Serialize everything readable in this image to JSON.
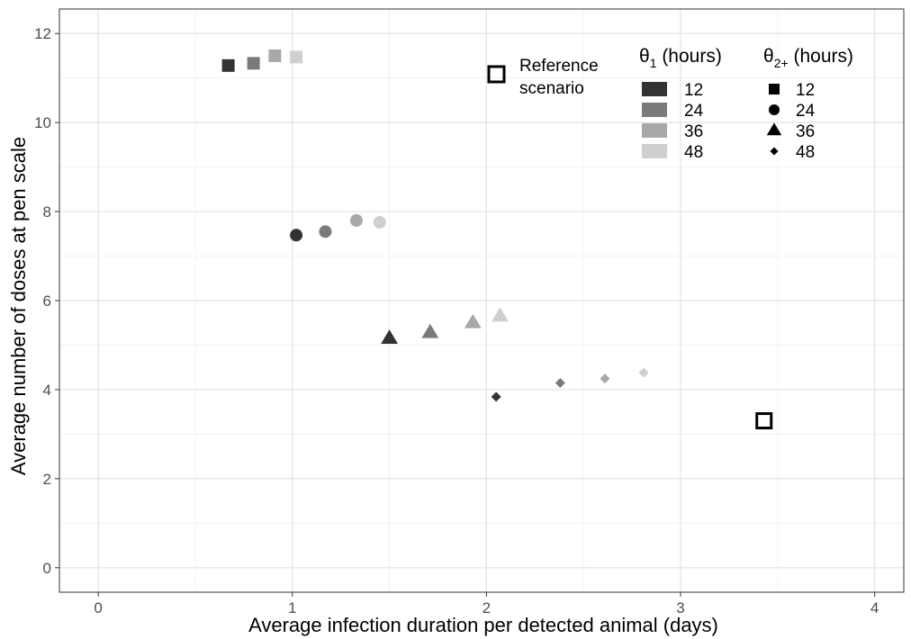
{
  "chart_data": {
    "type": "scatter",
    "xlabel": "Average infection duration per detected animal (days)",
    "ylabel": "Average number of doses at pen scale",
    "xlim": [
      -0.2,
      4.15
    ],
    "ylim": [
      -0.55,
      12.55
    ],
    "x_ticks": [
      0,
      1,
      2,
      3,
      4
    ],
    "y_ticks": [
      0,
      2,
      4,
      6,
      8,
      10,
      12
    ],
    "x_tick_labels": [
      "0",
      "1",
      "2",
      "3",
      "4"
    ],
    "y_tick_labels": [
      "0",
      "2",
      "4",
      "6",
      "8",
      "10",
      "12"
    ],
    "grid": true,
    "legend_placement": "top-right",
    "legend_theta1": {
      "title_main": "θ",
      "title_sub": "1",
      "title_rest": " (hours)",
      "entries": [
        {
          "label": "12",
          "color": "#333333"
        },
        {
          "label": "24",
          "color": "#7a7a7a"
        },
        {
          "label": "36",
          "color": "#a8a8a8"
        },
        {
          "label": "48",
          "color": "#cfcfcf"
        }
      ]
    },
    "legend_theta2": {
      "title_main": "θ",
      "title_sub": "2+",
      "title_rest": " (hours)",
      "entries": [
        {
          "label": "12",
          "shape": "square"
        },
        {
          "label": "24",
          "shape": "circle"
        },
        {
          "label": "36",
          "shape": "triangle"
        },
        {
          "label": "48",
          "shape": "diamond"
        }
      ]
    },
    "reference_legend": {
      "line1": "Reference",
      "line2": "scenario"
    },
    "points": [
      {
        "x": 0.67,
        "y": 11.28,
        "theta1": "12",
        "theta2": "12"
      },
      {
        "x": 0.8,
        "y": 11.33,
        "theta1": "24",
        "theta2": "12"
      },
      {
        "x": 0.91,
        "y": 11.5,
        "theta1": "36",
        "theta2": "12"
      },
      {
        "x": 1.02,
        "y": 11.47,
        "theta1": "48",
        "theta2": "12"
      },
      {
        "x": 1.02,
        "y": 7.47,
        "theta1": "12",
        "theta2": "24"
      },
      {
        "x": 1.17,
        "y": 7.55,
        "theta1": "24",
        "theta2": "24"
      },
      {
        "x": 1.33,
        "y": 7.8,
        "theta1": "36",
        "theta2": "24"
      },
      {
        "x": 1.45,
        "y": 7.76,
        "theta1": "48",
        "theta2": "24"
      },
      {
        "x": 1.5,
        "y": 5.15,
        "theta1": "12",
        "theta2": "36"
      },
      {
        "x": 1.71,
        "y": 5.28,
        "theta1": "24",
        "theta2": "36"
      },
      {
        "x": 1.93,
        "y": 5.5,
        "theta1": "36",
        "theta2": "36"
      },
      {
        "x": 2.07,
        "y": 5.65,
        "theta1": "48",
        "theta2": "36"
      },
      {
        "x": 2.05,
        "y": 3.84,
        "theta1": "12",
        "theta2": "48"
      },
      {
        "x": 2.38,
        "y": 4.15,
        "theta1": "24",
        "theta2": "48"
      },
      {
        "x": 2.61,
        "y": 4.25,
        "theta1": "36",
        "theta2": "48"
      },
      {
        "x": 2.81,
        "y": 4.38,
        "theta1": "48",
        "theta2": "48"
      }
    ],
    "reference_point": {
      "x": 3.43,
      "y": 3.3
    }
  }
}
